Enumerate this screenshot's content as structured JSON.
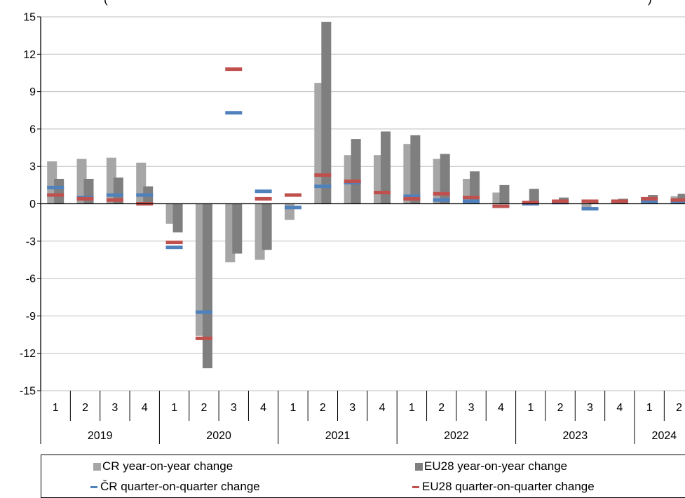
{
  "chart_data": {
    "type": "bar",
    "title_fragment_left": "(",
    "title_fragment_right": ")",
    "quarters": [
      "1",
      "2",
      "3",
      "4",
      "1",
      "2",
      "3",
      "4",
      "1",
      "2",
      "3",
      "4",
      "1",
      "2",
      "3",
      "4",
      "1",
      "2",
      "3",
      "4",
      "1",
      "2"
    ],
    "years": [
      {
        "label": "2019",
        "quarters": 4
      },
      {
        "label": "2020",
        "quarters": 4
      },
      {
        "label": "2021",
        "quarters": 4
      },
      {
        "label": "2022",
        "quarters": 4
      },
      {
        "label": "2023",
        "quarters": 4
      },
      {
        "label": "2024",
        "quarters": 2
      }
    ],
    "y_ticks": [
      "15",
      "12",
      "9",
      "6",
      "3",
      "0",
      "-3",
      "-6",
      "-9",
      "-12",
      "-15"
    ],
    "ylim": [
      -15,
      15
    ],
    "grid": true,
    "series": [
      {
        "name": "CR year-on-year change",
        "kind": "bar",
        "color": "#a6a6a6",
        "values": [
          3.4,
          3.6,
          3.7,
          3.3,
          -1.6,
          -10.6,
          -4.7,
          -4.5,
          -1.3,
          9.7,
          3.9,
          3.9,
          4.8,
          3.6,
          2.0,
          0.9,
          0.2,
          0.2,
          -0.3,
          0.3,
          0.4,
          0.6
        ]
      },
      {
        "name": "EU28 year-on-year change",
        "kind": "bar",
        "color": "#7f7f7f",
        "values": [
          2.0,
          2.0,
          2.1,
          1.4,
          -2.3,
          -13.2,
          -4.0,
          -3.7,
          0.0,
          14.6,
          5.2,
          5.8,
          5.5,
          4.0,
          2.6,
          1.5,
          1.2,
          0.5,
          0.2,
          0.4,
          0.7,
          0.8
        ]
      },
      {
        "name": "ČR quarter-on-quarter change",
        "kind": "marker",
        "color": "#4f81bd",
        "values": [
          1.3,
          0.5,
          0.7,
          0.7,
          -3.5,
          -8.7,
          7.3,
          1.0,
          -0.3,
          1.4,
          1.7,
          0.9,
          0.6,
          0.3,
          0.2,
          -0.2,
          0.0,
          0.1,
          -0.4,
          0.2,
          0.2,
          0.2
        ]
      },
      {
        "name": "EU28 quarter-on-quarter change",
        "kind": "marker",
        "color": "#c0504d",
        "values": [
          0.7,
          0.4,
          0.3,
          0.0,
          -3.1,
          -10.8,
          10.8,
          0.4,
          0.7,
          2.3,
          1.8,
          0.9,
          0.4,
          0.8,
          0.5,
          -0.2,
          0.1,
          0.2,
          0.2,
          0.2,
          0.4,
          0.3
        ]
      }
    ]
  }
}
